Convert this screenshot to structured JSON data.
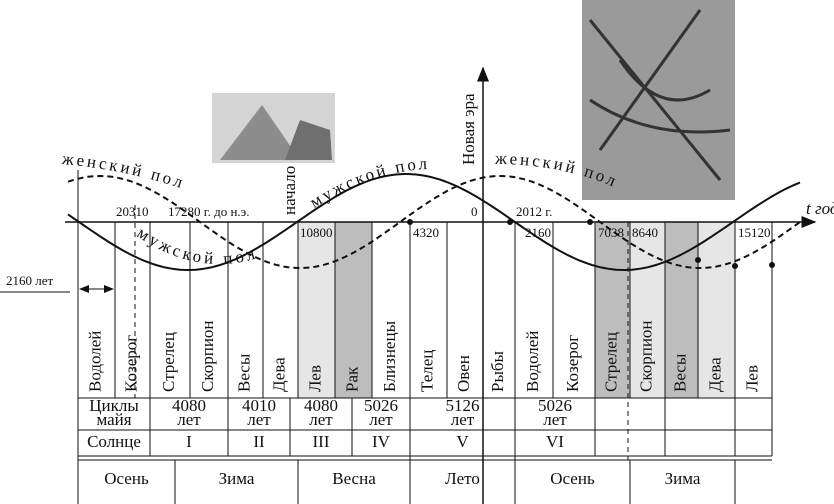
{
  "axis_label": "t год",
  "era_label": "Новая эра",
  "start_label": "начало",
  "interval": "2160 лет",
  "curve_labels": [
    "женский пол",
    "мужской пол",
    "мужской пол",
    "женский пол"
  ],
  "years": [
    "20310",
    "17280 г. до н.э.",
    "10800",
    "4320",
    "0",
    "2012 г.",
    "2160",
    "7038",
    "8640",
    "15120"
  ],
  "zodiac": [
    "Водолей",
    "Козерог",
    "Стрелец",
    "Скорпион",
    "Весы",
    "Дева",
    "Лев",
    "Рак",
    "Близнецы",
    "Телец",
    "Овен",
    "Рыбы",
    "Водолей",
    "Козерог",
    "Стрелец",
    "Скорпион",
    "Весы",
    "Дева",
    "Лев"
  ],
  "maya": {
    "label": [
      "Циклы",
      "майя"
    ],
    "cycles": [
      [
        "4080",
        "лет"
      ],
      [
        "4010",
        "лет"
      ],
      [
        "4080",
        "лет"
      ],
      [
        "5026",
        "лет"
      ],
      [
        "5126",
        "лет"
      ],
      [
        "5026",
        "лет"
      ]
    ]
  },
  "sun": {
    "label": "Солнце",
    "eras": [
      "I",
      "II",
      "III",
      "IV",
      "V",
      "VI"
    ]
  },
  "seasons": [
    "Осень",
    "Зима",
    "Весна",
    "Лето",
    "Осень",
    "Зима"
  ]
}
